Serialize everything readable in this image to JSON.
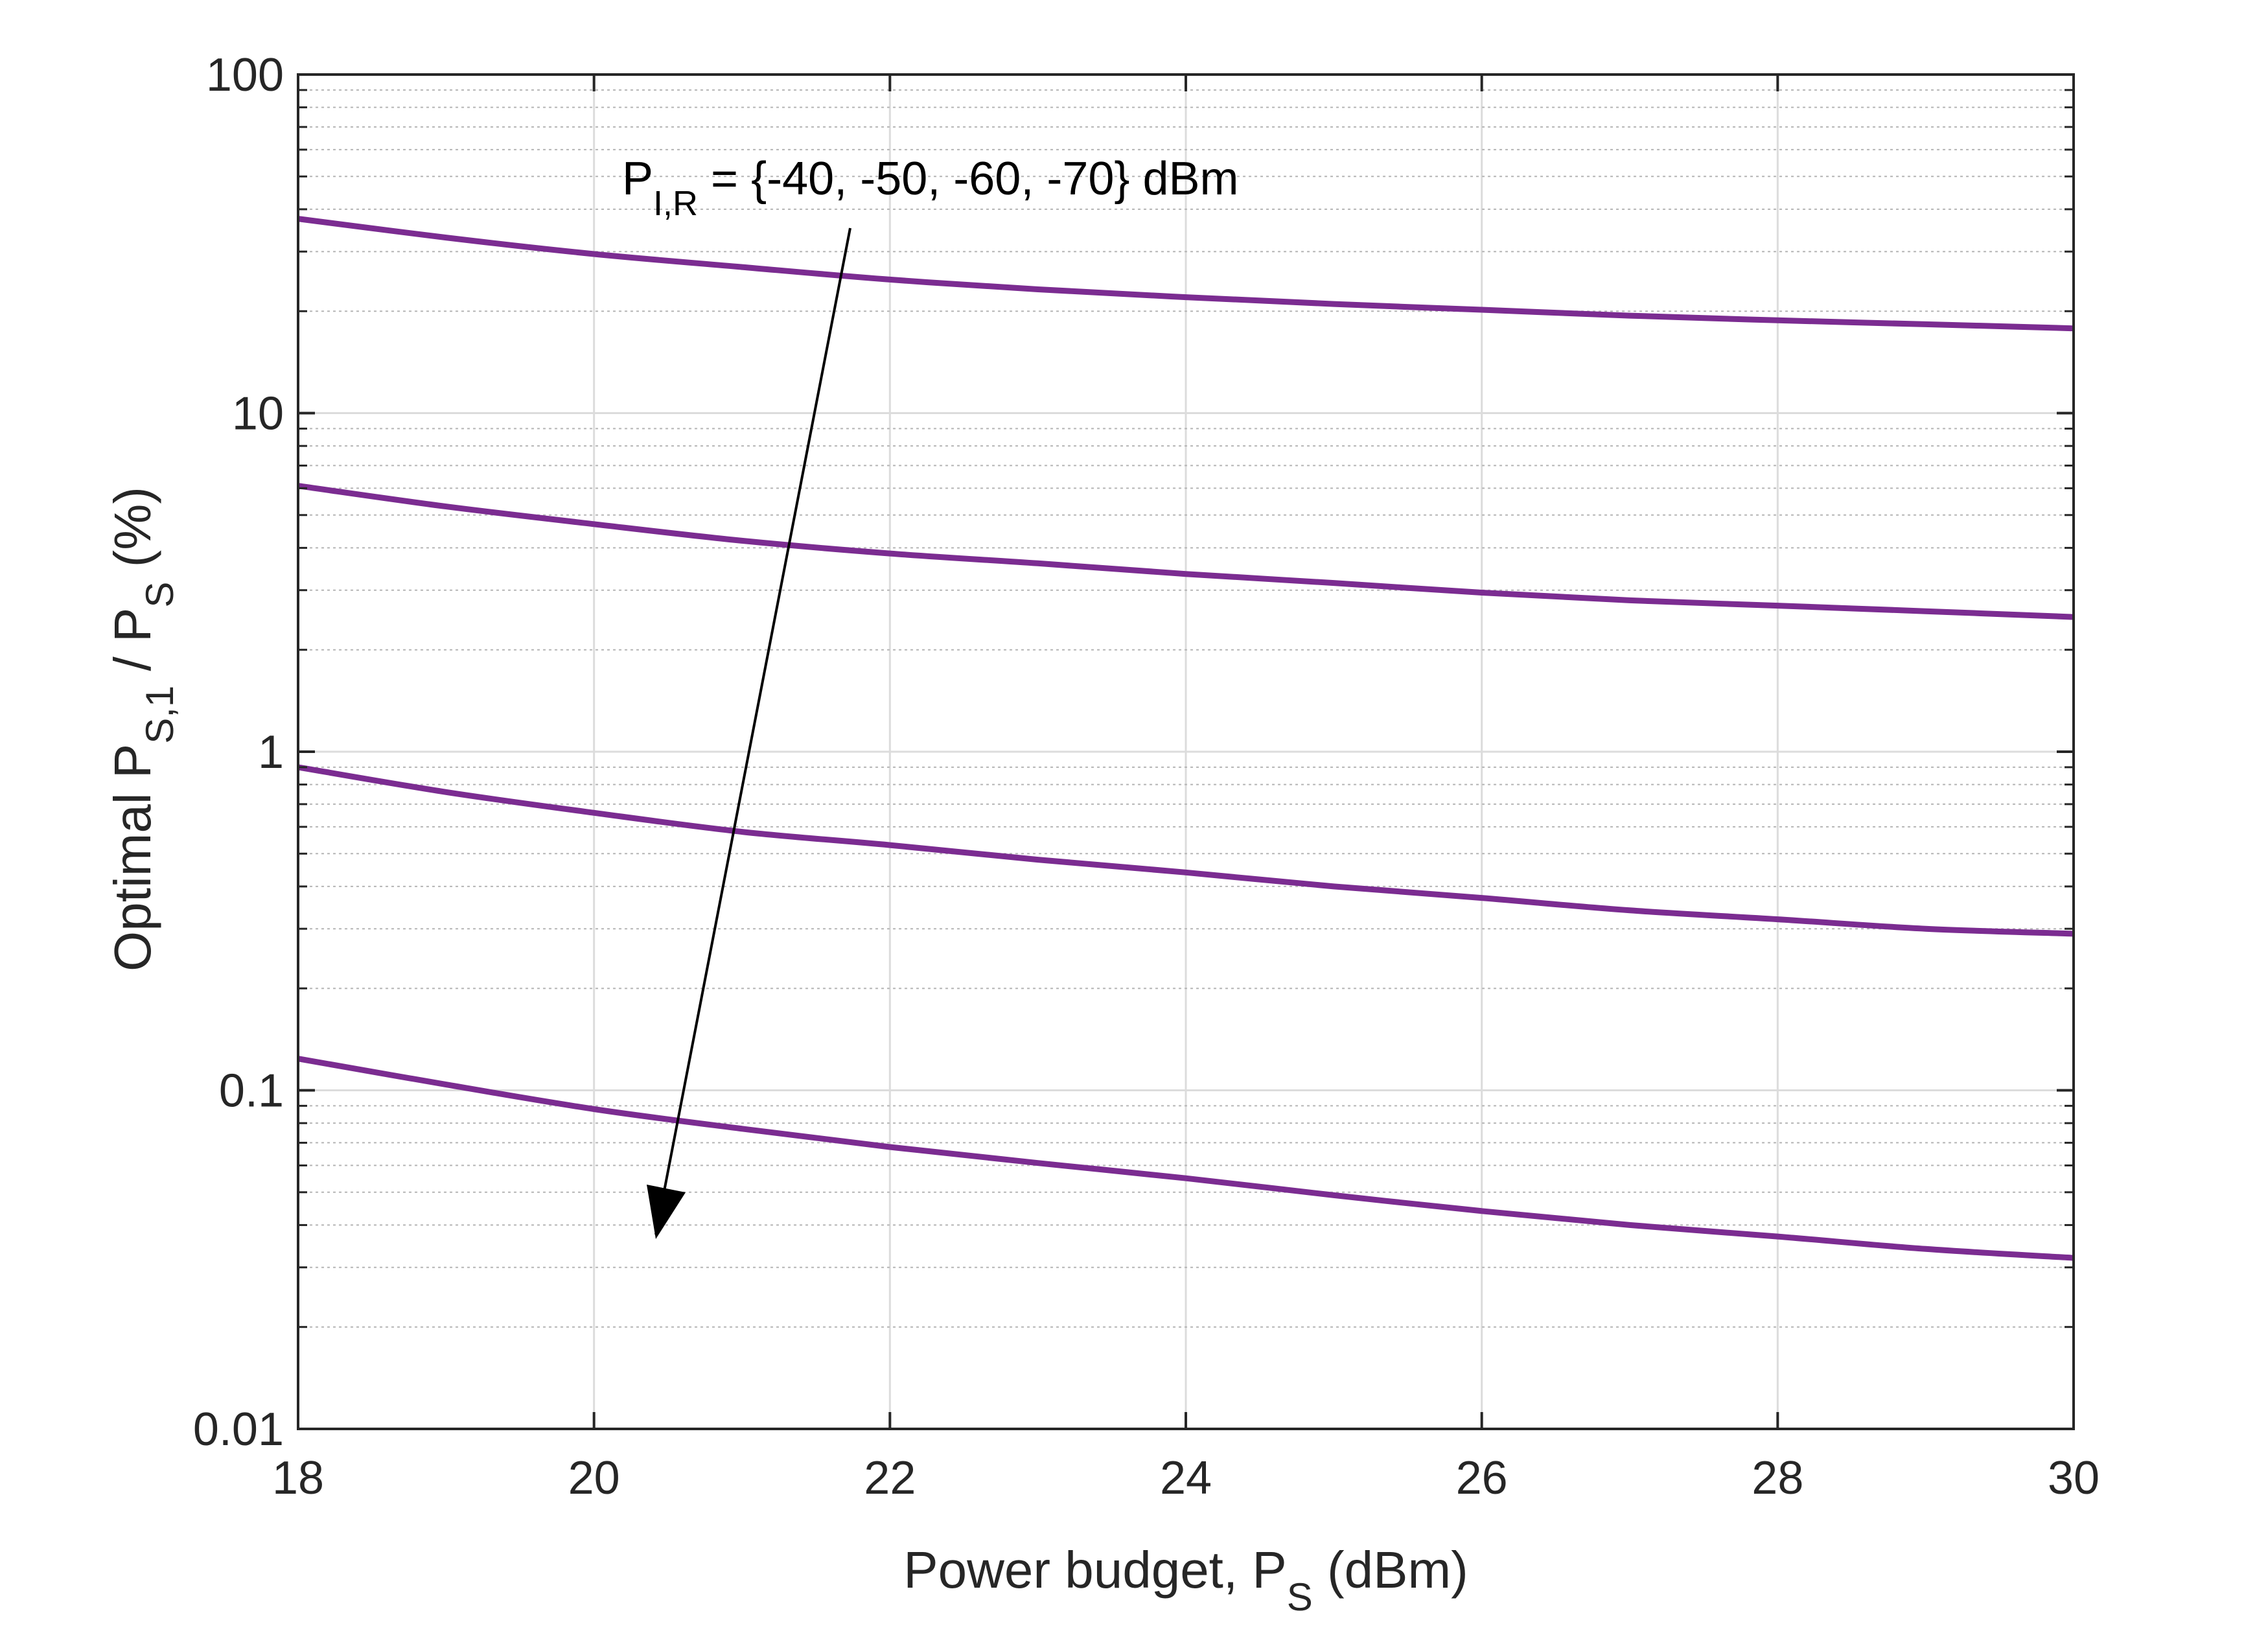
{
  "chart_data": {
    "type": "line",
    "yscale": "log",
    "xlim": [
      18,
      30
    ],
    "ylim": [
      0.01,
      100
    ],
    "grid": true,
    "minor_grid": true,
    "x_ticks": [
      "18",
      "20",
      "22",
      "24",
      "26",
      "28",
      "30"
    ],
    "y_ticks": [
      "0.01",
      "0.1",
      "1",
      "10",
      "100"
    ],
    "xlabel": {
      "main": "Power budget, P",
      "sub": "S",
      "tail": " (dBm)"
    },
    "ylabel": {
      "main": "Optimal P",
      "sub1": "S,1",
      "mid": " / P",
      "sub2": "S",
      "tail": " (%)"
    },
    "annotation": {
      "main": "P",
      "sub": "I,R",
      "tail": " = {-40, -50, -60, -70} dBm",
      "arrow_direction": "down"
    },
    "line_color": "#7B2C91",
    "series": [
      {
        "x": [
          18,
          19,
          20,
          21,
          22,
          23,
          24,
          25,
          26,
          27,
          28,
          29,
          30
        ],
        "values": [
          37.5,
          33.0,
          29.5,
          27.0,
          24.8,
          23.2,
          22.0,
          21.0,
          20.2,
          19.4,
          18.8,
          18.3,
          17.8
        ]
      },
      {
        "x": [
          18,
          19,
          20,
          21,
          22,
          23,
          24,
          25,
          26,
          27,
          28,
          29,
          30
        ],
        "values": [
          6.1,
          5.3,
          4.7,
          4.2,
          3.85,
          3.6,
          3.35,
          3.15,
          2.95,
          2.8,
          2.7,
          2.6,
          2.5
        ]
      },
      {
        "x": [
          18,
          19,
          20,
          21,
          22,
          23,
          24,
          25,
          26,
          27,
          28,
          29,
          30
        ],
        "values": [
          0.9,
          0.76,
          0.66,
          0.58,
          0.53,
          0.48,
          0.44,
          0.4,
          0.37,
          0.34,
          0.32,
          0.3,
          0.29
        ]
      },
      {
        "x": [
          18,
          19,
          20,
          21,
          22,
          23,
          24,
          25,
          26,
          27,
          28,
          29,
          30
        ],
        "values": [
          0.124,
          0.104,
          0.088,
          0.077,
          0.068,
          0.061,
          0.055,
          0.049,
          0.044,
          0.04,
          0.037,
          0.034,
          0.032
        ]
      }
    ]
  }
}
